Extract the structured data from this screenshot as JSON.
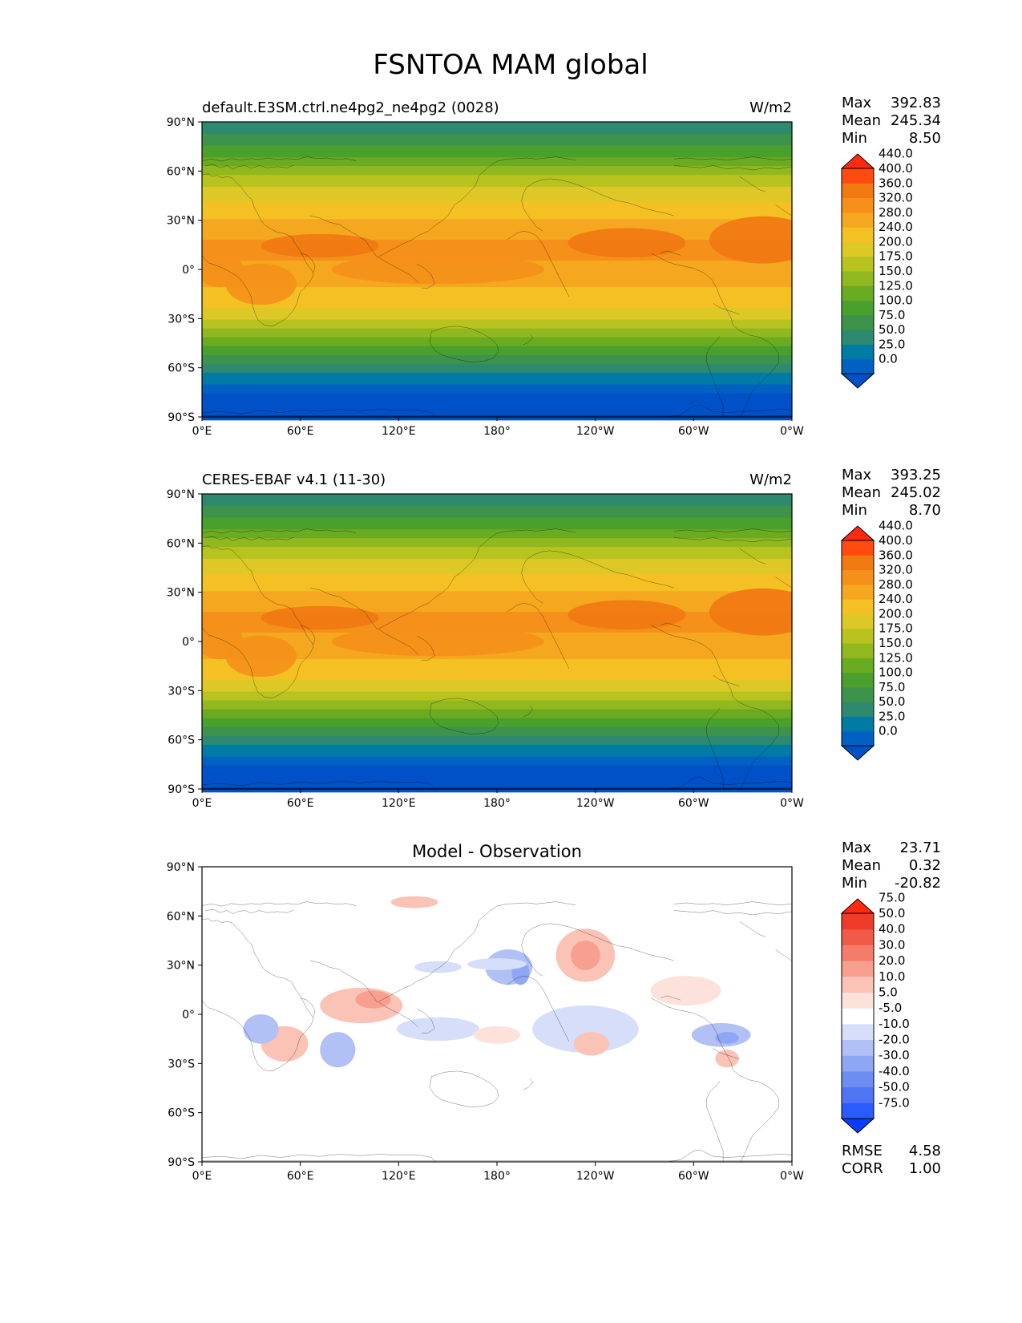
{
  "figure": {
    "title": "FSNTOA MAM global",
    "lat_labels": [
      "90°N",
      "60°N",
      "30°N",
      "0°",
      "30°S",
      "60°S",
      "90°S"
    ],
    "lon_labels": [
      "0°E",
      "60°E",
      "120°E",
      "180°",
      "120°W",
      "60°W",
      "0°W"
    ],
    "stat_labels": {
      "max": "Max",
      "mean": "Mean",
      "min": "Min",
      "rmse": "RMSE",
      "corr": "CORR"
    }
  },
  "panels": [
    {
      "id": "model",
      "title_left": "default.E3SM.ctrl.ne4pg2_ne4pg2 (0028)",
      "title_center": "",
      "units": "W/m2",
      "stats": {
        "max": "392.83",
        "mean": "245.34",
        "min": "8.50"
      },
      "colorbar": [
        "0.0",
        "25.0",
        "50.0",
        "75.0",
        "100.0",
        "125.0",
        "150.0",
        "175.0",
        "200.0",
        "240.0",
        "280.0",
        "320.0",
        "360.0",
        "400.0",
        "440.0"
      ]
    },
    {
      "id": "obs",
      "title_left": "CERES-EBAF v4.1 (11-30)",
      "title_center": "",
      "units": "W/m2",
      "stats": {
        "max": "393.25",
        "mean": "245.02",
        "min": "8.70"
      },
      "colorbar": [
        "0.0",
        "25.0",
        "50.0",
        "75.0",
        "100.0",
        "125.0",
        "150.0",
        "175.0",
        "200.0",
        "240.0",
        "280.0",
        "320.0",
        "360.0",
        "400.0",
        "440.0"
      ]
    },
    {
      "id": "diff",
      "title_left": "",
      "title_center": "Model - Observation",
      "units": "",
      "stats": {
        "max": "23.71",
        "mean": "0.32",
        "min": "-20.82",
        "rmse": "4.58",
        "corr": "1.00"
      },
      "colorbar": [
        "-75.0",
        "-50.0",
        "-40.0",
        "-30.0",
        "-20.0",
        "-10.0",
        "-5.0",
        "5.0",
        "10.0",
        "20.0",
        "30.0",
        "40.0",
        "50.0",
        "75.0"
      ]
    }
  ],
  "colors": {
    "field_bands": [
      "#0050c8",
      "#0061c3",
      "#007ba6",
      "#2e8a6e",
      "#3d934b",
      "#4aa02c",
      "#6aab22",
      "#92b81f",
      "#b8c31f",
      "#ddc827",
      "#f5c023",
      "#f5a71f",
      "#f5901a",
      "#f17912",
      "#ff4a10",
      "#ff2a10"
    ],
    "diff_bands": [
      "#0a3cff",
      "#2a5bff",
      "#4f75f5",
      "#6e8df2",
      "#8fa6f2",
      "#b1c0f5",
      "#d6defa",
      "#ffffff",
      "#fde2dc",
      "#fbc2b6",
      "#f89f8f",
      "#f57c6b",
      "#f15a48",
      "#ee3a28",
      "#ff2a10"
    ]
  }
}
